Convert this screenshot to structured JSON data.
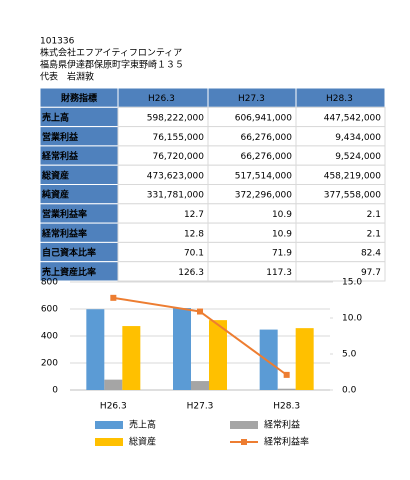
{
  "header": {
    "code": "101336",
    "company": "株式会社エフアイティフロンティア",
    "address": "福島県伊達郡保原町字東野崎１３５",
    "representative": "代表　岩淵敦"
  },
  "table": {
    "header": [
      "財務指標",
      "H26.3",
      "H27.3",
      "H28.3"
    ],
    "rows": [
      [
        "売上高",
        "598,222,000",
        "606,941,000",
        "447,542,000"
      ],
      [
        "営業利益",
        "76,155,000",
        "66,276,000",
        "9,434,000"
      ],
      [
        "経常利益",
        "76,720,000",
        "66,276,000",
        "9,524,000"
      ],
      [
        "総資産",
        "473,623,000",
        "517,514,000",
        "458,219,000"
      ],
      [
        "純資産",
        "331,781,000",
        "372,296,000",
        "377,558,000"
      ],
      [
        "営業利益率",
        "12.7",
        "10.9",
        "2.1"
      ],
      [
        "経常利益率",
        "12.8",
        "10.9",
        "2.1"
      ],
      [
        "自己資本比率",
        "70.1",
        "71.9",
        "82.4"
      ],
      [
        "売上資産比率",
        "126.3",
        "117.3",
        "97.7"
      ]
    ]
  },
  "chart_data": {
    "type": "bar",
    "categories": [
      "H26.3",
      "H27.3",
      "H28.3"
    ],
    "series": [
      {
        "name": "売上高",
        "color": "#5b9bd5",
        "values": [
          598.222,
          606.941,
          447.542
        ]
      },
      {
        "name": "経常利益",
        "color": "#a5a5a5",
        "values": [
          76.72,
          66.276,
          9.524
        ]
      },
      {
        "name": "総資産",
        "color": "#ffc000",
        "values": [
          473.623,
          517.514,
          458.219
        ]
      },
      {
        "name": "経常利益率",
        "color": "#ed7d31",
        "type": "line",
        "axis": "y2",
        "values": [
          12.8,
          10.9,
          2.1
        ]
      }
    ],
    "ylim": [
      0,
      800
    ],
    "yticks": [
      0,
      200,
      400,
      600,
      800
    ],
    "y2lim": [
      0,
      15
    ],
    "y2ticks": [
      {
        "value": 0,
        "label": "0.0"
      },
      {
        "value": 5,
        "label": "5.0"
      },
      {
        "value": 10,
        "label": "10.0"
      },
      {
        "value": 15,
        "label": "15.0"
      }
    ],
    "grid": true
  }
}
